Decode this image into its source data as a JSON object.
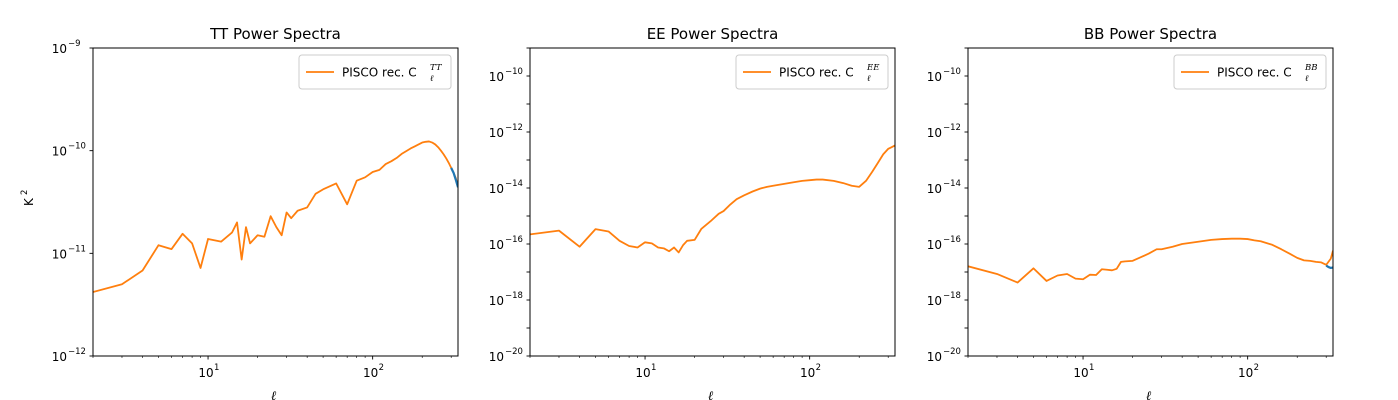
{
  "colors": {
    "reference": "#1f77b4",
    "reconstruction": "#ff7f0e"
  },
  "chart_data": [
    {
      "type": "line",
      "title": "TT Power Spectra",
      "xlabel": "ℓ",
      "ylabel": "K",
      "ylabel_superscript": "2",
      "xscale": "log",
      "yscale": "log",
      "xlim": [
        2,
        330
      ],
      "ylim": [
        1e-12,
        1e-09
      ],
      "xticks": [
        {
          "base": "10",
          "exp": "1",
          "value": 10
        },
        {
          "base": "10",
          "exp": "2",
          "value": 100
        }
      ],
      "yticks": [
        {
          "base": "10",
          "exp": "−12",
          "value": 1e-12
        },
        {
          "base": "10",
          "exp": "−11",
          "value": 1e-11
        },
        {
          "base": "10",
          "exp": "−10",
          "value": 1e-10
        },
        {
          "base": "10",
          "exp": "−9",
          "value": 1e-09
        }
      ],
      "legend": {
        "position": "top-right",
        "text": "PISCO rec. C",
        "sub": "ℓ",
        "sup": "TT"
      },
      "series": [
        {
          "name": "PISCO rec.",
          "color": "#ff7f0e",
          "x": [
            2,
            3,
            4,
            5,
            6,
            7,
            8,
            9,
            10,
            12,
            14,
            15,
            16,
            17,
            18,
            20,
            22,
            24,
            26,
            28,
            30,
            32,
            35,
            40,
            45,
            50,
            60,
            70,
            80,
            90,
            100,
            110,
            120,
            130,
            140,
            150,
            160,
            170,
            180,
            190,
            200,
            210,
            220,
            230,
            240,
            250,
            260,
            270,
            280,
            290,
            300,
            310,
            320,
            330
          ],
          "y": [
            4.2e-12,
            5e-12,
            6.8e-12,
            1.2e-11,
            1.1e-11,
            1.55e-11,
            1.25e-11,
            7.2e-12,
            1.38e-11,
            1.3e-11,
            1.6e-11,
            2e-11,
            8.7e-12,
            1.8e-11,
            1.25e-11,
            1.5e-11,
            1.45e-11,
            2.3e-11,
            1.8e-11,
            1.5e-11,
            2.5e-11,
            2.2e-11,
            2.6e-11,
            2.8e-11,
            3.8e-11,
            4.2e-11,
            4.8e-11,
            3e-11,
            5.1e-11,
            5.5e-11,
            6.2e-11,
            6.5e-11,
            7.4e-11,
            7.9e-11,
            8.5e-11,
            9.3e-11,
            9.9e-11,
            1.05e-10,
            1.1e-10,
            1.15e-10,
            1.2e-10,
            1.22e-10,
            1.23e-10,
            1.2e-10,
            1.15e-10,
            1.08e-10,
            1e-10,
            9.2e-11,
            8.4e-11,
            7.6e-11,
            6.8e-11,
            6.1e-11,
            5.4e-11,
            4.5e-11
          ]
        },
        {
          "name": "",
          "color": "#1f77b4",
          "x": [
            300,
            310,
            320,
            330
          ],
          "y": [
            6.8e-11,
            6.1e-11,
            5.2e-11,
            4.4e-11
          ]
        }
      ]
    },
    {
      "type": "line",
      "title": "EE Power Spectra",
      "xlabel": "ℓ",
      "ylabel": "",
      "ylabel_superscript": "",
      "xscale": "log",
      "yscale": "log",
      "xlim": [
        2,
        330
      ],
      "ylim": [
        1e-20,
        1e-09
      ],
      "xticks": [
        {
          "base": "10",
          "exp": "1",
          "value": 10
        },
        {
          "base": "10",
          "exp": "2",
          "value": 100
        }
      ],
      "yticks": [
        {
          "base": "10",
          "exp": "−20",
          "value": 1e-20
        },
        {
          "base": "10",
          "exp": "−18",
          "value": 1e-18
        },
        {
          "base": "10",
          "exp": "−16",
          "value": 1e-16
        },
        {
          "base": "10",
          "exp": "−14",
          "value": 1e-14
        },
        {
          "base": "10",
          "exp": "−12",
          "value": 1e-12
        },
        {
          "base": "10",
          "exp": "−10",
          "value": 1e-10
        }
      ],
      "legend": {
        "position": "top-right",
        "text": "PISCO rec. C",
        "sub": "ℓ",
        "sup": "EE"
      },
      "series": [
        {
          "name": "PISCO rec.",
          "color": "#ff7f0e",
          "x": [
            2,
            3,
            4,
            5,
            6,
            7,
            8,
            9,
            10,
            11,
            12,
            13,
            14,
            15,
            16,
            17,
            18,
            20,
            22,
            25,
            28,
            30,
            33,
            36,
            40,
            45,
            50,
            55,
            60,
            70,
            80,
            90,
            100,
            110,
            120,
            140,
            160,
            180,
            200,
            220,
            240,
            260,
            280,
            300,
            330
          ],
          "y": [
            2.2e-16,
            3e-16,
            8e-17,
            3.4e-16,
            2.8e-16,
            1.3e-16,
            8.5e-17,
            7.5e-17,
            1.15e-16,
            1.05e-16,
            7.5e-17,
            7e-17,
            5.5e-17,
            7.5e-17,
            5e-17,
            9e-17,
            1.3e-16,
            1.4e-16,
            3.5e-16,
            6.5e-16,
            1.2e-15,
            1.5e-15,
            2.6e-15,
            4e-15,
            5.5e-15,
            7.5e-15,
            9.5e-15,
            1.1e-14,
            1.2e-14,
            1.4e-14,
            1.6e-14,
            1.8e-14,
            1.9e-14,
            2e-14,
            2e-14,
            1.8e-14,
            1.5e-14,
            1.2e-14,
            1.1e-14,
            1.8e-14,
            3.8e-14,
            8e-14,
            1.6e-13,
            2.5e-13,
            3.3e-13
          ]
        }
      ]
    },
    {
      "type": "line",
      "title": "BB Power Spectra",
      "xlabel": "ℓ",
      "ylabel": "",
      "ylabel_superscript": "",
      "xscale": "log",
      "yscale": "log",
      "xlim": [
        2,
        330
      ],
      "ylim": [
        1e-20,
        1e-09
      ],
      "xticks": [
        {
          "base": "10",
          "exp": "1",
          "value": 10
        },
        {
          "base": "10",
          "exp": "2",
          "value": 100
        }
      ],
      "yticks": [
        {
          "base": "10",
          "exp": "−20",
          "value": 1e-20
        },
        {
          "base": "10",
          "exp": "−18",
          "value": 1e-18
        },
        {
          "base": "10",
          "exp": "−16",
          "value": 1e-16
        },
        {
          "base": "10",
          "exp": "−14",
          "value": 1e-14
        },
        {
          "base": "10",
          "exp": "−12",
          "value": 1e-12
        },
        {
          "base": "10",
          "exp": "−10",
          "value": 1e-10
        }
      ],
      "legend": {
        "position": "top-right",
        "text": "PISCO rec. C",
        "sub": "ℓ",
        "sup": "BB"
      },
      "series": [
        {
          "name": "PISCO rec.",
          "color": "#ff7f0e",
          "x": [
            2,
            3,
            4,
            5,
            6,
            7,
            8,
            9,
            10,
            11,
            12,
            13,
            14,
            15,
            16,
            17,
            18,
            20,
            22,
            25,
            28,
            30,
            35,
            40,
            50,
            60,
            70,
            80,
            90,
            100,
            110,
            120,
            140,
            160,
            180,
            200,
            220,
            240,
            260,
            280,
            300,
            320,
            330
          ],
          "y": [
            1.6e-17,
            8.5e-18,
            4.2e-18,
            1.35e-17,
            4.8e-18,
            7.5e-18,
            8.5e-18,
            5.8e-18,
            5.5e-18,
            8e-18,
            7.8e-18,
            1.25e-17,
            1.2e-17,
            1.15e-17,
            1.3e-17,
            2.3e-17,
            2.4e-17,
            2.5e-17,
            3.2e-17,
            4.5e-17,
            6.5e-17,
            6.5e-17,
            8e-17,
            1e-16,
            1.2e-16,
            1.4e-16,
            1.5e-16,
            1.55e-16,
            1.55e-16,
            1.5e-16,
            1.35e-16,
            1.25e-16,
            9.5e-17,
            6.5e-17,
            4.5e-17,
            3.2e-17,
            2.6e-17,
            2.5e-17,
            2.3e-17,
            2.2e-17,
            1.8e-17,
            3e-17,
            5.8e-17
          ]
        },
        {
          "name": "",
          "color": "#1f77b4",
          "x": [
            300,
            310,
            320,
            330
          ],
          "y": [
            1.7e-17,
            1.5e-17,
            1.4e-17,
            1.45e-17
          ]
        }
      ]
    }
  ]
}
